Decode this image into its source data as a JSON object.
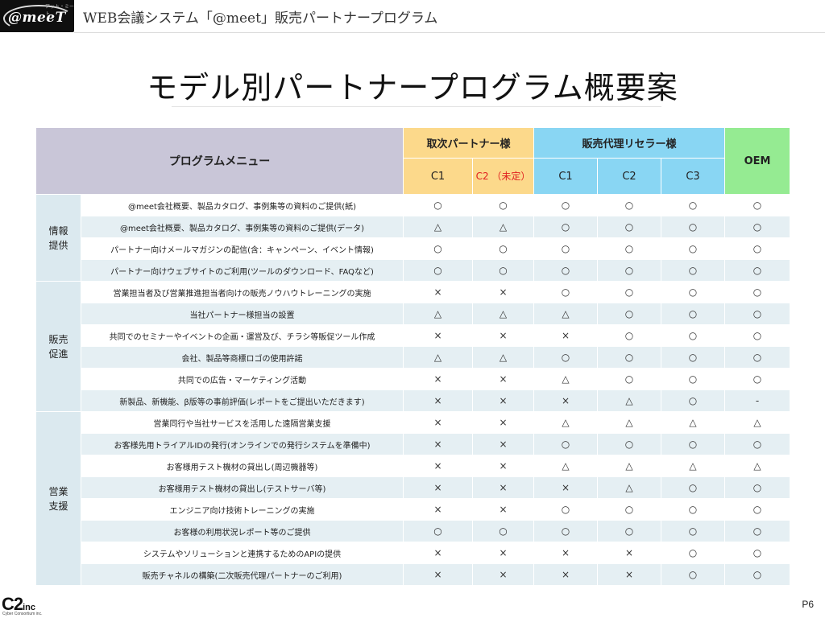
{
  "header": {
    "logo_text": "@meeT",
    "logo_ruby": "アット・ミート",
    "title": "WEB会議システム「@meet」販売パートナープログラム"
  },
  "page_title": "モデル別パートナープログラム概要案",
  "table": {
    "menu_header": "プログラムメニュー",
    "groups": {
      "agent": "取次パートナー様",
      "reseller": "販売代理リセラー様",
      "oem": "OEM"
    },
    "sub": [
      "C1",
      "C2 （未定）",
      "C1",
      "C2",
      "C3"
    ],
    "categories": [
      {
        "label": "情報\n提供"
      },
      {
        "label": "販売\n促進"
      },
      {
        "label": "営業\n支援"
      }
    ],
    "rows": [
      {
        "item": "@meet会社概要、製品カタログ、事例集等の資料のご提供(紙)",
        "vals": [
          "○",
          "○",
          "○",
          "○",
          "○",
          "○"
        ]
      },
      {
        "item": "@meet会社概要、製品カタログ、事例集等の資料のご提供(データ)",
        "vals": [
          "△",
          "△",
          "○",
          "○",
          "○",
          "○"
        ]
      },
      {
        "item": "パートナー向けメールマガジンの配信(含：キャンペーン、イベント情報)",
        "vals": [
          "○",
          "○",
          "○",
          "○",
          "○",
          "○"
        ]
      },
      {
        "item": "パートナー向けウェブサイトのご利用(ツールのダウンロード、FAQなど)",
        "vals": [
          "○",
          "○",
          "○",
          "○",
          "○",
          "○"
        ]
      },
      {
        "item": "営業担当者及び営業推進担当者向けの販売ノウハウトレーニングの実施",
        "vals": [
          "×",
          "×",
          "○",
          "○",
          "○",
          "○"
        ]
      },
      {
        "item": "当社パートナー様担当の設置",
        "vals": [
          "△",
          "△",
          "△",
          "○",
          "○",
          "○"
        ]
      },
      {
        "item": "共同でのセミナーやイベントの企画・運営及び、チラシ等販促ツール作成",
        "vals": [
          "×",
          "×",
          "×",
          "○",
          "○",
          "○"
        ]
      },
      {
        "item": "会社、製品等商標ロゴの使用許諾",
        "vals": [
          "△",
          "△",
          "○",
          "○",
          "○",
          "○"
        ]
      },
      {
        "item": "共同での広告・マーケティング活動",
        "vals": [
          "×",
          "×",
          "△",
          "○",
          "○",
          "○"
        ]
      },
      {
        "item": "新製品、新機能、β版等の事前評価(レポートをご提出いただきます)",
        "vals": [
          "×",
          "×",
          "×",
          "△",
          "○",
          "-"
        ]
      },
      {
        "item": "営業同行や当社サービスを活用した遠隔営業支援",
        "vals": [
          "×",
          "×",
          "△",
          "△",
          "△",
          "△"
        ]
      },
      {
        "item": "お客様先用トライアルIDの発行(オンラインでの発行システムを準備中)",
        "vals": [
          "×",
          "×",
          "○",
          "○",
          "○",
          "○"
        ]
      },
      {
        "item": "お客様用テスト機材の貸出し(周辺機器等)",
        "vals": [
          "×",
          "×",
          "△",
          "△",
          "△",
          "△"
        ]
      },
      {
        "item": "お客様用テスト機材の貸出し(テストサーバ等)",
        "vals": [
          "×",
          "×",
          "×",
          "△",
          "○",
          "○"
        ]
      },
      {
        "item": "エンジニア向け技術トレーニングの実施",
        "vals": [
          "×",
          "×",
          "○",
          "○",
          "○",
          "○"
        ]
      },
      {
        "item": "お客様の利用状況レポート等のご提供",
        "vals": [
          "○",
          "○",
          "○",
          "○",
          "○",
          "○"
        ]
      },
      {
        "item": "システムやソリューションと連携するためのAPIの提供",
        "vals": [
          "×",
          "×",
          "×",
          "×",
          "○",
          "○"
        ]
      },
      {
        "item": "販売チャネルの構築(二次販売代理パートナーのご利用)",
        "vals": [
          "×",
          "×",
          "×",
          "×",
          "○",
          "○"
        ]
      }
    ]
  },
  "footer": {
    "company_logo": "C2",
    "company_logo_suffix": "inc",
    "company_sub": "Cyber Consortium inc.",
    "page_number": "P6"
  }
}
